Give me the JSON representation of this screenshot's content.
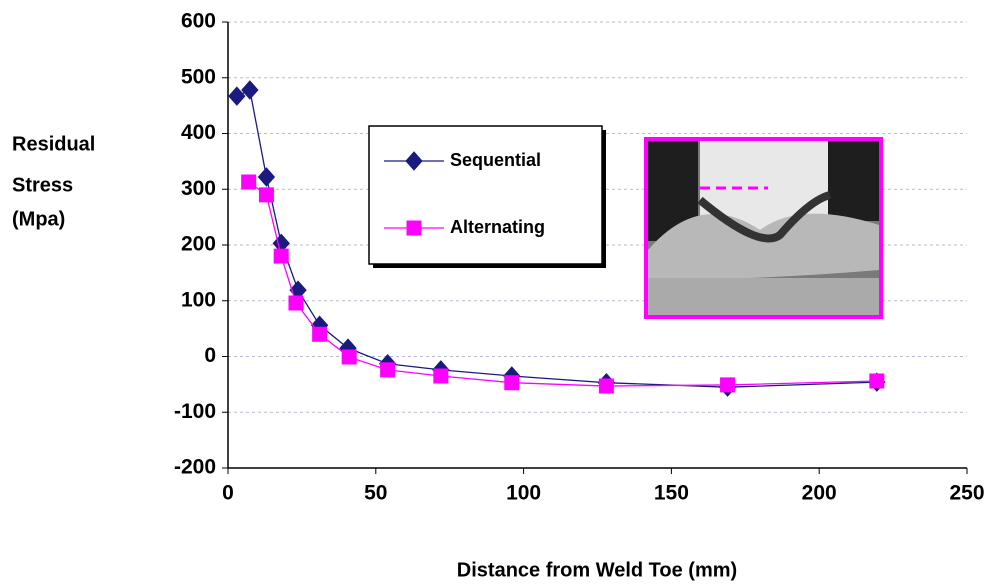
{
  "chart_data": {
    "type": "line",
    "xlabel": "Distance from Weld Toe (mm)",
    "ylabel": [
      "Residual",
      "Stress",
      "(Mpa)"
    ],
    "xlim": [
      0,
      250
    ],
    "xticks": [
      0,
      50,
      100,
      150,
      200,
      250
    ],
    "ylim": [
      -200,
      600
    ],
    "yticks": [
      -200,
      -100,
      0,
      100,
      200,
      300,
      400,
      500,
      600
    ],
    "grid": true,
    "series": [
      {
        "name": "Sequential",
        "color": "#1a1a80",
        "marker": "diamond",
        "x": [
          3,
          7.4,
          13,
          18,
          23.7,
          31,
          40.6,
          54,
          72,
          96,
          128,
          169,
          219.5
        ],
        "values": [
          467,
          478,
          322,
          203,
          119,
          56,
          15,
          -13,
          -24,
          -35,
          -47,
          -55,
          -46
        ]
      },
      {
        "name": "Alternating",
        "color": "#ff00ff",
        "marker": "square",
        "x": [
          7,
          13,
          18,
          23,
          31,
          41,
          54,
          72,
          96,
          128,
          169,
          219.5
        ],
        "values": [
          313,
          290,
          180,
          96,
          40,
          -1,
          -24,
          -35,
          -47,
          -53,
          -51,
          -44
        ]
      }
    ]
  }
}
